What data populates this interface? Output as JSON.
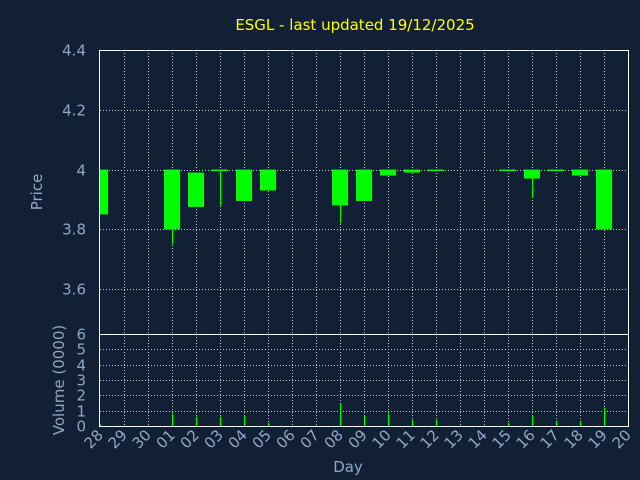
{
  "chart_data": {
    "type": "candlestick",
    "title": "ESGL - last updated 19/12/2025",
    "xlabel": "Day",
    "ylabel": "Price",
    "volume_label": "Volume (0000)",
    "x": [
      "28",
      "29",
      "30",
      "01",
      "02",
      "03",
      "04",
      "05",
      "06",
      "07",
      "08",
      "09",
      "10",
      "11",
      "12",
      "13",
      "14",
      "15",
      "16",
      "17",
      "18",
      "19",
      "20"
    ],
    "ylim": [
      3.45,
      4.4
    ],
    "yticks": [
      3.6,
      3.8,
      4,
      4.2,
      4.4
    ],
    "ytick_labels": [
      "3.6",
      "3.8",
      "4",
      "4.2",
      "4.4"
    ],
    "volume_ylim": [
      0,
      6
    ],
    "volume_ticks": [
      0,
      1,
      2,
      3,
      4,
      5,
      6
    ],
    "grid": true,
    "colors": {
      "background": "#112034",
      "bar": "#00ff00",
      "title": "#ffff00",
      "axis_text": "#8ea8c8",
      "grid": "#c8c8c8"
    },
    "candles": [
      {
        "day": "28",
        "open": 4.0,
        "close": 3.85,
        "high": 4.0,
        "low": 3.85,
        "volume": 0.1
      },
      {
        "day": "01",
        "open": 4.0,
        "close": 3.8,
        "high": 4.0,
        "low": 3.75,
        "volume": 0.8
      },
      {
        "day": "02",
        "open": 3.99,
        "close": 3.875,
        "high": 3.99,
        "low": 3.875,
        "volume": 0.6
      },
      {
        "day": "03",
        "open": 4.0,
        "close": 3.995,
        "high": 4.0,
        "low": 3.88,
        "volume": 0.6
      },
      {
        "day": "04",
        "open": 4.0,
        "close": 3.895,
        "high": 4.0,
        "low": 3.895,
        "volume": 0.7
      },
      {
        "day": "05",
        "open": 4.0,
        "close": 3.93,
        "high": 4.0,
        "low": 3.93,
        "volume": 0.2
      },
      {
        "day": "08",
        "open": 4.0,
        "close": 3.88,
        "high": 4.0,
        "low": 3.82,
        "volume": 1.5
      },
      {
        "day": "09",
        "open": 4.0,
        "close": 3.895,
        "high": 4.0,
        "low": 3.895,
        "volume": 0.7
      },
      {
        "day": "10",
        "open": 4.0,
        "close": 3.98,
        "high": 4.0,
        "low": 3.98,
        "volume": 0.8
      },
      {
        "day": "11",
        "open": 4.0,
        "close": 3.99,
        "high": 4.0,
        "low": 3.99,
        "volume": 0.4
      },
      {
        "day": "12",
        "open": 4.0,
        "close": 3.995,
        "high": 4.0,
        "low": 3.995,
        "volume": 0.4
      },
      {
        "day": "15",
        "open": 4.0,
        "close": 3.995,
        "high": 4.0,
        "low": 3.995,
        "volume": 0.2
      },
      {
        "day": "16",
        "open": 4.0,
        "close": 3.97,
        "high": 4.0,
        "low": 3.905,
        "volume": 0.7
      },
      {
        "day": "17",
        "open": 4.0,
        "close": 3.995,
        "high": 4.0,
        "low": 3.995,
        "volume": 0.3
      },
      {
        "day": "18",
        "open": 4.0,
        "close": 3.98,
        "high": 4.0,
        "low": 3.98,
        "volume": 0.3
      },
      {
        "day": "19",
        "open": 4.0,
        "close": 3.8,
        "high": 4.0,
        "low": 3.8,
        "volume": 1.2
      }
    ]
  }
}
